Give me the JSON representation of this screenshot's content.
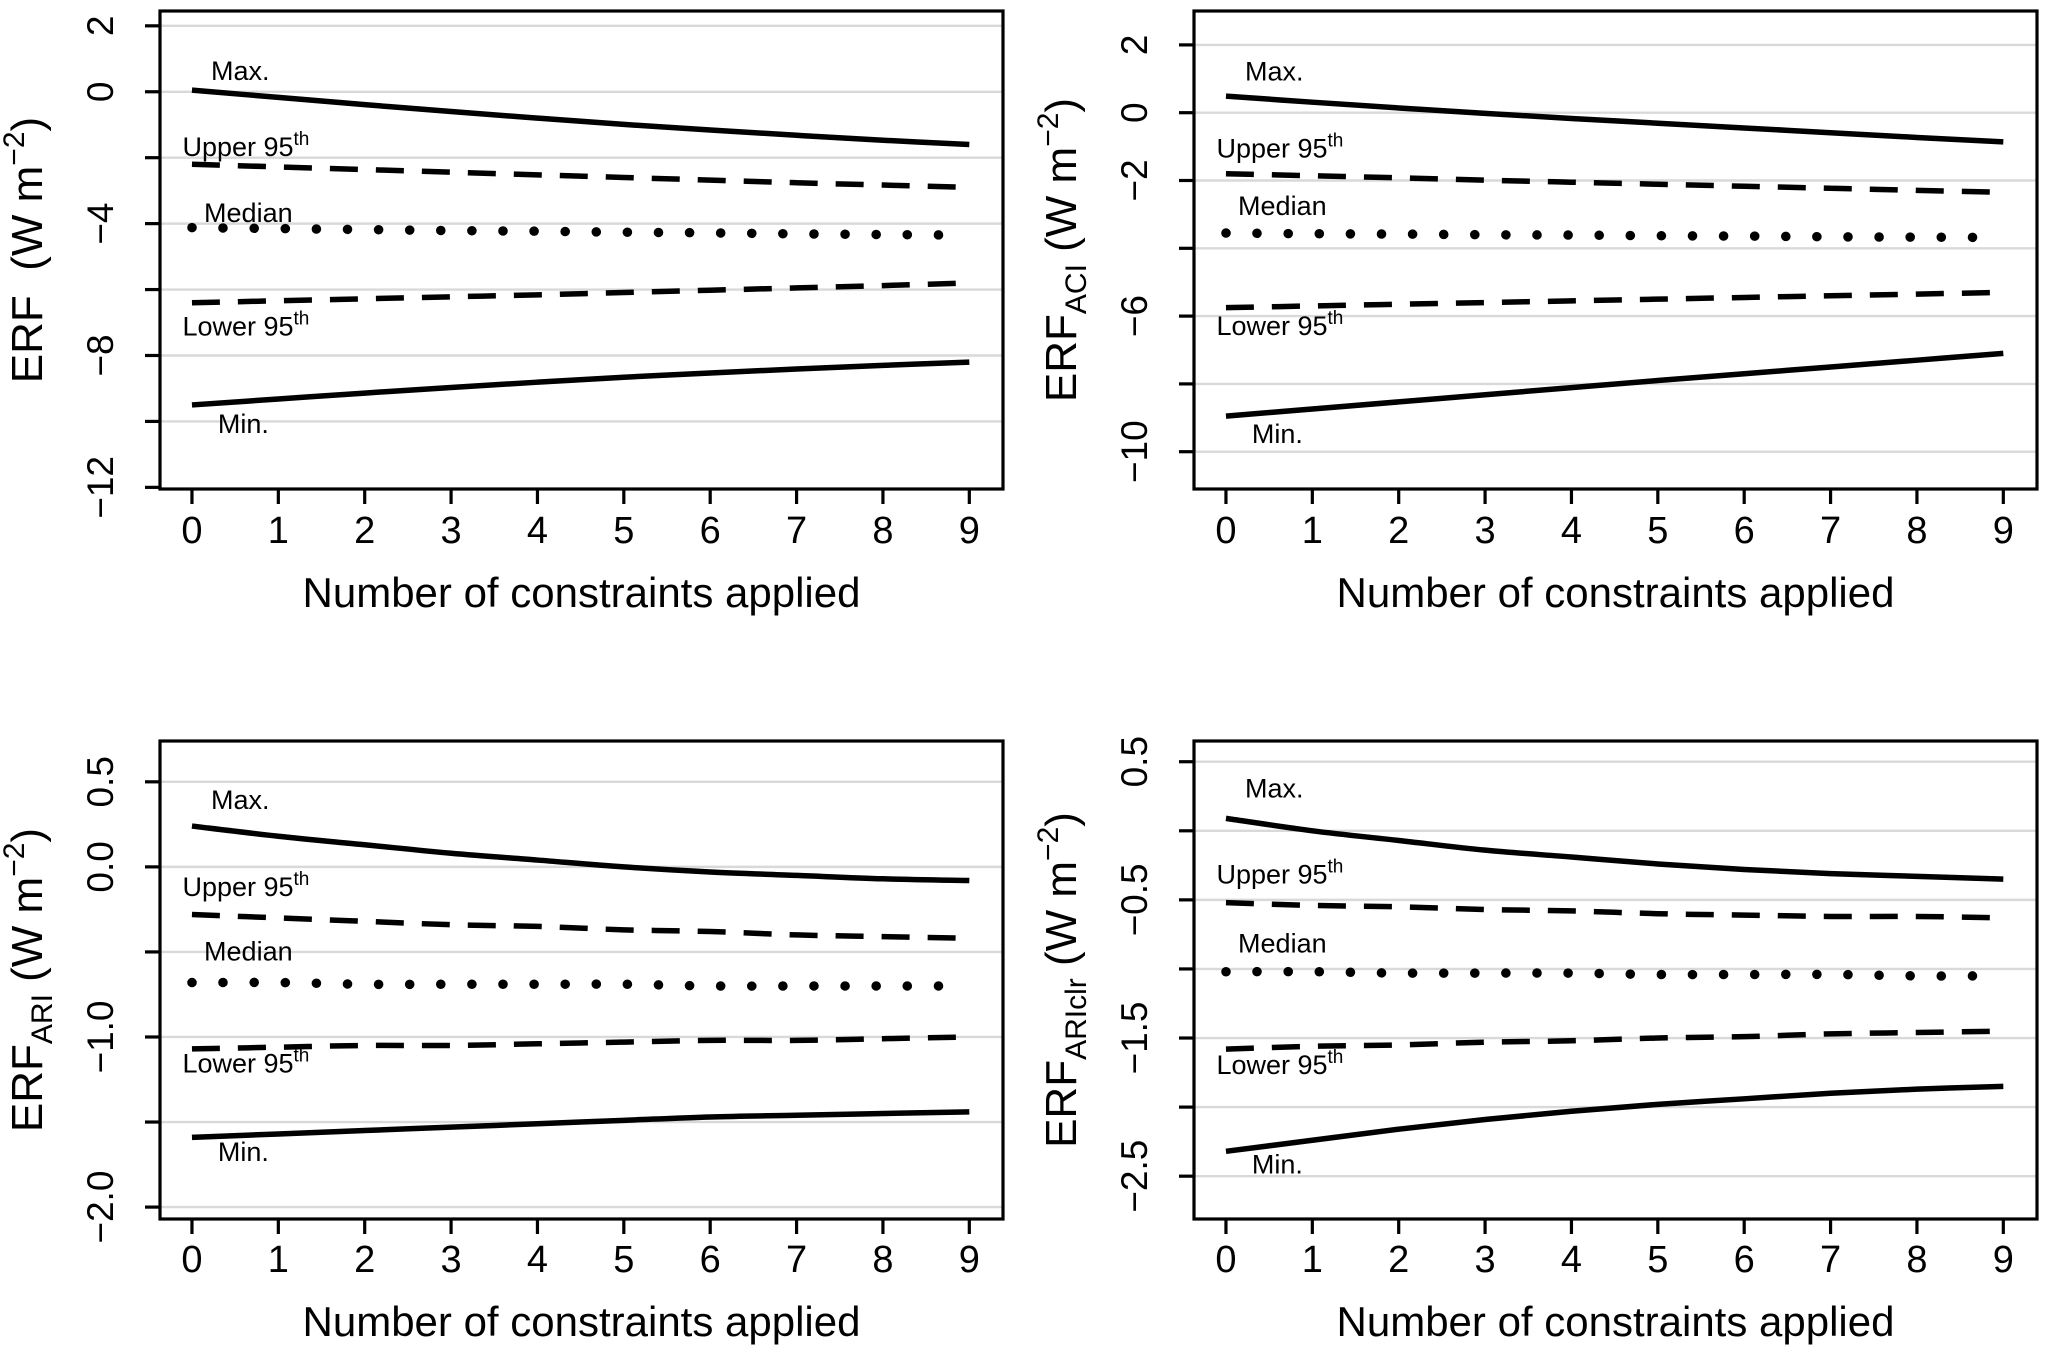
{
  "figure": {
    "background": "#ffffff",
    "line_color": "#000000",
    "grid_color": "#d9d9d9",
    "xlabel": "Number of constraints applied"
  },
  "chart_data": {
    "type": "line",
    "title": "",
    "xlabel": "Number of constraints applied",
    "x": [
      0,
      1,
      2,
      3,
      4,
      5,
      6,
      7,
      8,
      9
    ],
    "xticks": [
      0,
      1,
      2,
      3,
      4,
      5,
      6,
      7,
      8,
      9
    ],
    "legend_position": "inline-labels",
    "grid": "horizontal",
    "charts": [
      {
        "name": "ERF panel",
        "ylabel": "ERF (W m-2)",
        "ylabel_parts": {
          "base": "ERF",
          "sub": "",
          "unit_prefix": "  (W m",
          "sup": "−2",
          "unit_suffix": ")"
        },
        "xlabel": "Number of constraints applied",
        "xlim": [
          -0.37,
          9.39
        ],
        "ylim": [
          -12.05,
          2.45
        ],
        "yticks": [
          {
            "v": 2,
            "label": "2"
          },
          {
            "v": 0,
            "label": "0"
          },
          {
            "v": -2,
            "label": ""
          },
          {
            "v": -4,
            "label": "−4"
          },
          {
            "v": -6,
            "label": ""
          },
          {
            "v": -8,
            "label": "−8"
          },
          {
            "v": -10,
            "label": ""
          },
          {
            "v": -12,
            "label": "−12"
          }
        ],
        "series": [
          {
            "name": "Max.",
            "style": "solid",
            "values": [
              0.05,
              -0.17,
              -0.39,
              -0.6,
              -0.8,
              -0.99,
              -1.16,
              -1.32,
              -1.47,
              -1.6
            ],
            "label": {
              "text": "Max.",
              "sup": "",
              "x": 0.22,
              "y": 0.35
            }
          },
          {
            "name": "Upper 95th",
            "style": "dashed",
            "values": [
              -2.2,
              -2.28,
              -2.36,
              -2.44,
              -2.52,
              -2.6,
              -2.68,
              -2.76,
              -2.83,
              -2.9
            ],
            "label": {
              "text": "Upper 95",
              "sup": "th",
              "x": -0.11,
              "y": -1.95
            }
          },
          {
            "name": "Median",
            "style": "dotted",
            "values": [
              -4.12,
              -4.15,
              -4.18,
              -4.21,
              -4.23,
              -4.26,
              -4.28,
              -4.31,
              -4.33,
              -4.35
            ],
            "label": {
              "text": "Median",
              "sup": "",
              "x": 0.14,
              "y": -3.95
            }
          },
          {
            "name": "Lower 95th",
            "style": "dashed",
            "values": [
              -6.4,
              -6.34,
              -6.28,
              -6.22,
              -6.16,
              -6.09,
              -6.02,
              -5.95,
              -5.88,
              -5.8
            ],
            "label": {
              "text": "Lower 95",
              "sup": "th",
              "x": -0.11,
              "y": -7.4
            }
          },
          {
            "name": "Min.",
            "style": "solid",
            "values": [
              -9.5,
              -9.32,
              -9.14,
              -8.97,
              -8.81,
              -8.66,
              -8.53,
              -8.41,
              -8.3,
              -8.2
            ],
            "label": {
              "text": "Min.",
              "sup": "",
              "x": 0.3,
              "y": -10.35
            }
          }
        ]
      },
      {
        "name": "ERF ACI panel",
        "ylabel": "ERF_ACI (W m-2)",
        "ylabel_parts": {
          "base": "ERF",
          "sub": "ACI",
          "unit_prefix": " (W m",
          "sup": "−2",
          "unit_suffix": ")"
        },
        "xlabel": "Number of constraints applied",
        "xlim": [
          -0.37,
          9.39
        ],
        "ylim": [
          -11.1,
          3.0
        ],
        "yticks": [
          {
            "v": 2,
            "label": "2"
          },
          {
            "v": 0,
            "label": "0"
          },
          {
            "v": -2,
            "label": "−2"
          },
          {
            "v": -4,
            "label": ""
          },
          {
            "v": -6,
            "label": "−6"
          },
          {
            "v": -8,
            "label": ""
          },
          {
            "v": -10,
            "label": "−10"
          }
        ],
        "series": [
          {
            "name": "Max.",
            "style": "solid",
            "values": [
              0.49,
              0.31,
              0.14,
              -0.02,
              -0.17,
              -0.31,
              -0.45,
              -0.59,
              -0.73,
              -0.86
            ],
            "label": {
              "text": "Max.",
              "sup": "",
              "x": 0.22,
              "y": 0.95
            }
          },
          {
            "name": "Upper 95th",
            "style": "dashed",
            "values": [
              -1.8,
              -1.86,
              -1.92,
              -1.99,
              -2.05,
              -2.11,
              -2.17,
              -2.23,
              -2.29,
              -2.35
            ],
            "label": {
              "text": "Upper 95",
              "sup": "th",
              "x": -0.11,
              "y": -1.32
            }
          },
          {
            "name": "Median",
            "style": "dotted",
            "values": [
              -3.55,
              -3.57,
              -3.58,
              -3.6,
              -3.61,
              -3.63,
              -3.64,
              -3.66,
              -3.67,
              -3.68
            ],
            "label": {
              "text": "Median",
              "sup": "",
              "x": 0.14,
              "y": -3.02
            }
          },
          {
            "name": "Lower 95th",
            "style": "dashed",
            "values": [
              -5.75,
              -5.7,
              -5.65,
              -5.6,
              -5.55,
              -5.5,
              -5.45,
              -5.4,
              -5.35,
              -5.3
            ],
            "label": {
              "text": "Lower 95",
              "sup": "th",
              "x": -0.11,
              "y": -6.55
            }
          },
          {
            "name": "Min.",
            "style": "solid",
            "values": [
              -8.95,
              -8.74,
              -8.53,
              -8.32,
              -8.11,
              -7.9,
              -7.7,
              -7.5,
              -7.3,
              -7.1
            ],
            "label": {
              "text": "Min.",
              "sup": "",
              "x": 0.3,
              "y": -9.75
            }
          }
        ]
      },
      {
        "name": "ERF ARI panel",
        "ylabel": "ERF_ARI (W m-2)",
        "ylabel_parts": {
          "base": "ERF",
          "sub": "ARI",
          "unit_prefix": " (W m",
          "sup": "−2",
          "unit_suffix": ")"
        },
        "xlabel": "Number of constraints applied",
        "xlim": [
          -0.37,
          9.39
        ],
        "ylim": [
          -2.07,
          0.74
        ],
        "yticks": [
          {
            "v": 0.5,
            "label": "0.5"
          },
          {
            "v": 0.0,
            "label": "0.0"
          },
          {
            "v": -0.5,
            "label": ""
          },
          {
            "v": -1.0,
            "label": "−1.0"
          },
          {
            "v": -1.5,
            "label": ""
          },
          {
            "v": -2.0,
            "label": "−2.0"
          }
        ],
        "series": [
          {
            "name": "Max.",
            "style": "solid",
            "values": [
              0.24,
              0.18,
              0.13,
              0.08,
              0.04,
              0.0,
              -0.03,
              -0.05,
              -0.07,
              -0.08
            ],
            "label": {
              "text": "Max.",
              "sup": "",
              "x": 0.22,
              "y": 0.34
            }
          },
          {
            "name": "Upper 95th",
            "style": "dashed",
            "values": [
              -0.28,
              -0.3,
              -0.32,
              -0.34,
              -0.35,
              -0.37,
              -0.38,
              -0.4,
              -0.41,
              -0.42
            ],
            "label": {
              "text": "Upper 95",
              "sup": "th",
              "x": -0.11,
              "y": -0.17
            }
          },
          {
            "name": "Median",
            "style": "dotted",
            "values": [
              -0.68,
              -0.68,
              -0.69,
              -0.69,
              -0.69,
              -0.69,
              -0.7,
              -0.7,
              -0.7,
              -0.7
            ],
            "label": {
              "text": "Median",
              "sup": "",
              "x": 0.14,
              "y": -0.55
            }
          },
          {
            "name": "Lower 95th",
            "style": "dashed",
            "values": [
              -1.07,
              -1.06,
              -1.05,
              -1.05,
              -1.04,
              -1.03,
              -1.02,
              -1.02,
              -1.01,
              -1.0
            ],
            "label": {
              "text": "Lower 95",
              "sup": "th",
              "x": -0.11,
              "y": -1.21
            }
          },
          {
            "name": "Min.",
            "style": "solid",
            "values": [
              -1.59,
              -1.57,
              -1.55,
              -1.53,
              -1.51,
              -1.49,
              -1.47,
              -1.46,
              -1.45,
              -1.44
            ],
            "label": {
              "text": "Min.",
              "sup": "",
              "x": 0.3,
              "y": -1.73
            }
          }
        ]
      },
      {
        "name": "ERF ARIclr panel",
        "ylabel": "ERF_ARIclr (W m-2)",
        "ylabel_parts": {
          "base": "ERF",
          "sub": "ARIclr",
          "unit_prefix": " (W m",
          "sup": "−2",
          "unit_suffix": ")"
        },
        "xlabel": "Number of constraints applied",
        "xlim": [
          -0.37,
          9.39
        ],
        "ylim": [
          -2.81,
          0.65
        ],
        "yticks": [
          {
            "v": 0.5,
            "label": "0.5"
          },
          {
            "v": 0.0,
            "label": ""
          },
          {
            "v": -0.5,
            "label": "−0.5"
          },
          {
            "v": -1.0,
            "label": ""
          },
          {
            "v": -1.5,
            "label": "−1.5"
          },
          {
            "v": -2.0,
            "label": ""
          },
          {
            "v": -2.5,
            "label": "−2.5"
          }
        ],
        "series": [
          {
            "name": "Max.",
            "style": "solid",
            "values": [
              0.09,
              0.0,
              -0.07,
              -0.14,
              -0.19,
              -0.24,
              -0.28,
              -0.31,
              -0.33,
              -0.35
            ],
            "label": {
              "text": "Max.",
              "sup": "",
              "x": 0.22,
              "y": 0.24
            }
          },
          {
            "name": "Upper 95th",
            "style": "dashed",
            "values": [
              -0.52,
              -0.54,
              -0.55,
              -0.57,
              -0.58,
              -0.6,
              -0.61,
              -0.62,
              -0.62,
              -0.63
            ],
            "label": {
              "text": "Upper 95",
              "sup": "th",
              "x": -0.11,
              "y": -0.38
            }
          },
          {
            "name": "Median",
            "style": "dotted",
            "values": [
              -1.02,
              -1.02,
              -1.03,
              -1.03,
              -1.03,
              -1.04,
              -1.04,
              -1.04,
              -1.05,
              -1.05
            ],
            "label": {
              "text": "Median",
              "sup": "",
              "x": 0.14,
              "y": -0.88
            }
          },
          {
            "name": "Lower 95th",
            "style": "dashed",
            "values": [
              -1.58,
              -1.56,
              -1.55,
              -1.53,
              -1.52,
              -1.5,
              -1.49,
              -1.47,
              -1.46,
              -1.45
            ],
            "label": {
              "text": "Lower 95",
              "sup": "th",
              "x": -0.11,
              "y": -1.76
            }
          },
          {
            "name": "Min.",
            "style": "solid",
            "values": [
              -2.32,
              -2.24,
              -2.16,
              -2.09,
              -2.03,
              -1.98,
              -1.94,
              -1.9,
              -1.87,
              -1.85
            ],
            "label": {
              "text": "Min.",
              "sup": "",
              "x": 0.3,
              "y": -2.48
            }
          }
        ]
      }
    ]
  }
}
